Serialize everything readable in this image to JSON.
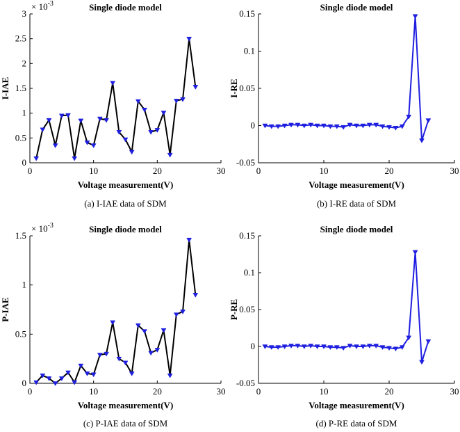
{
  "chart_data": [
    {
      "type": "line",
      "title": "Single diode model",
      "xlabel": "Voltage measurement(V)",
      "ylabel": "I-IAE",
      "caption": "(a) I-IAE data of SDM",
      "exponent_label": "× 10",
      "exponent_power": "-3",
      "xlim": [
        0,
        30
      ],
      "ylim": [
        0,
        3
      ],
      "xticks": [
        0,
        10,
        20,
        30
      ],
      "xtick_labels": [
        "0",
        "10",
        "20",
        "30"
      ],
      "yticks": [
        0,
        0.5,
        1,
        1.5,
        2,
        2.5,
        3
      ],
      "ytick_labels": [
        "0",
        "0.5",
        "1",
        "1.5",
        "2",
        "2.5",
        "3"
      ],
      "line_color": "#000000",
      "marker_color": "#1f1fe0",
      "x": [
        1,
        2,
        3,
        4,
        5,
        6,
        7,
        8,
        9,
        10,
        11,
        12,
        13,
        14,
        15,
        16,
        17,
        18,
        19,
        20,
        21,
        22,
        23,
        24,
        25,
        26
      ],
      "values": [
        0.09,
        0.67,
        0.86,
        0.35,
        0.95,
        0.96,
        0.09,
        0.85,
        0.41,
        0.35,
        0.89,
        0.86,
        1.61,
        0.62,
        0.47,
        0.22,
        1.24,
        1.07,
        0.62,
        0.66,
        1.01,
        0.16,
        1.25,
        1.28,
        2.5,
        1.53
      ]
    },
    {
      "type": "line",
      "title": "Single diode model",
      "xlabel": "Voltage measurement(V)",
      "ylabel": "I-RE",
      "caption": "(b) I-RE data of SDM",
      "xlim": [
        0,
        30
      ],
      "ylim": [
        -0.05,
        0.15
      ],
      "xticks": [
        0,
        10,
        20,
        30
      ],
      "xtick_labels": [
        "0",
        "10",
        "20",
        "30"
      ],
      "yticks": [
        -0.05,
        0,
        0.05,
        0.1,
        0.15
      ],
      "ytick_labels": [
        "-0.05",
        "0",
        "0.05",
        "0.1",
        "0.15"
      ],
      "line_color": "#1f1fe0",
      "marker_color": "#1f1fe0",
      "x": [
        1,
        2,
        3,
        4,
        5,
        6,
        7,
        8,
        9,
        10,
        11,
        12,
        13,
        14,
        15,
        16,
        17,
        18,
        19,
        20,
        21,
        22,
        23,
        24,
        25,
        26
      ],
      "values": [
        0.0,
        -0.001,
        -0.001,
        0.0,
        0.001,
        0.001,
        0.0,
        0.001,
        0.0,
        0.0,
        -0.001,
        -0.001,
        -0.002,
        0.001,
        0.0,
        0.0,
        0.001,
        0.001,
        -0.001,
        -0.002,
        -0.003,
        -0.001,
        0.012,
        0.147,
        -0.02,
        0.007
      ]
    },
    {
      "type": "line",
      "title": "Single diode model",
      "xlabel": "Voltage measurement(V)",
      "ylabel": "P-IAE",
      "caption": "(c) P-IAE data of SDM",
      "exponent_label": "× 10",
      "exponent_power": "-3",
      "xlim": [
        0,
        30
      ],
      "ylim": [
        0,
        1.5
      ],
      "xticks": [
        0,
        10,
        20,
        30
      ],
      "xtick_labels": [
        "0",
        "10",
        "20",
        "30"
      ],
      "yticks": [
        0,
        0.5,
        1,
        1.5
      ],
      "ytick_labels": [
        "0",
        "0.5",
        "1",
        "1.5"
      ],
      "line_color": "#000000",
      "marker_color": "#1f1fe0",
      "x": [
        1,
        2,
        3,
        4,
        5,
        6,
        7,
        8,
        9,
        10,
        11,
        12,
        13,
        14,
        15,
        16,
        17,
        18,
        19,
        20,
        21,
        22,
        23,
        24,
        25,
        26
      ],
      "values": [
        0.01,
        0.08,
        0.05,
        0.0,
        0.05,
        0.11,
        0.01,
        0.18,
        0.1,
        0.09,
        0.29,
        0.3,
        0.62,
        0.25,
        0.21,
        0.1,
        0.59,
        0.53,
        0.31,
        0.34,
        0.54,
        0.08,
        0.7,
        0.73,
        1.46,
        0.9
      ]
    },
    {
      "type": "line",
      "title": "Single diode model",
      "xlabel": "Voltage measurement(V)",
      "ylabel": "P-RE",
      "caption": "(d) P-RE data of SDM",
      "xlim": [
        0,
        30
      ],
      "ylim": [
        -0.05,
        0.15
      ],
      "xticks": [
        0,
        10,
        20,
        30
      ],
      "xtick_labels": [
        "0",
        "10",
        "20",
        "30"
      ],
      "yticks": [
        -0.05,
        0,
        0.05,
        0.1,
        0.15
      ],
      "ytick_labels": [
        "-0.05",
        "0",
        "0.05",
        "0.1",
        "0.15"
      ],
      "line_color": "#1f1fe0",
      "marker_color": "#1f1fe0",
      "x": [
        1,
        2,
        3,
        4,
        5,
        6,
        7,
        8,
        9,
        10,
        11,
        12,
        13,
        14,
        15,
        16,
        17,
        18,
        19,
        20,
        21,
        22,
        23,
        24,
        25,
        26
      ],
      "values": [
        0.0,
        -0.001,
        -0.001,
        0.0,
        0.001,
        0.001,
        0.0,
        0.001,
        0.0,
        0.0,
        -0.001,
        -0.001,
        -0.002,
        0.001,
        0.0,
        0.0,
        0.001,
        0.001,
        -0.001,
        -0.002,
        -0.003,
        -0.001,
        0.012,
        0.128,
        -0.021,
        0.007
      ]
    }
  ]
}
